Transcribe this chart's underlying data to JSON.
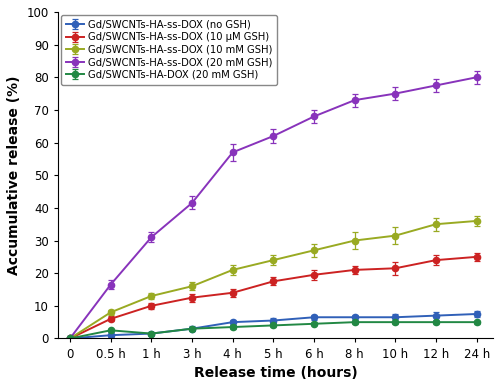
{
  "x_labels": [
    "0",
    "0.5 h",
    "1 h",
    "3 h",
    "4 h",
    "5 h",
    "6 h",
    "8 h",
    "10 h",
    "12 h",
    "24 h"
  ],
  "x_indices": [
    0,
    1,
    2,
    3,
    4,
    5,
    6,
    7,
    8,
    9,
    10
  ],
  "series": [
    {
      "label": "Gd/SWCNTs-HA-ss-DOX (no GSH)",
      "color": "#3060b8",
      "marker": "o",
      "y": [
        0,
        1.0,
        1.5,
        3.0,
        5.0,
        5.5,
        6.5,
        6.5,
        6.5,
        7.0,
        7.5
      ],
      "yerr": [
        0,
        0.5,
        0.5,
        0.8,
        0.8,
        0.8,
        0.8,
        0.8,
        1.0,
        1.2,
        0.8
      ]
    },
    {
      "label": "Gd/SWCNTs-HA-ss-DOX (10 μM GSH)",
      "color": "#cc2222",
      "marker": "o",
      "y": [
        0,
        6.0,
        10.0,
        12.5,
        14.0,
        17.5,
        19.5,
        21.0,
        21.5,
        24.0,
        25.0
      ],
      "yerr": [
        0,
        0.8,
        1.0,
        1.2,
        1.2,
        1.2,
        1.5,
        1.2,
        2.0,
        1.5,
        1.2
      ]
    },
    {
      "label": "Gd/SWCNTs-HA-ss-DOX (10 mM GSH)",
      "color": "#99aa22",
      "marker": "o",
      "y": [
        0,
        8.0,
        13.0,
        16.0,
        21.0,
        24.0,
        27.0,
        30.0,
        31.5,
        35.0,
        36.0
      ],
      "yerr": [
        0,
        0.8,
        1.0,
        1.2,
        1.5,
        1.5,
        2.0,
        2.5,
        2.5,
        2.0,
        1.5
      ]
    },
    {
      "label": "Gd/SWCNTs-HA-ss-DOX (20 mM GSH)",
      "color": "#8833bb",
      "marker": "o",
      "y": [
        0,
        16.5,
        31.0,
        41.5,
        57.0,
        62.0,
        68.0,
        73.0,
        75.0,
        77.5,
        80.0
      ],
      "yerr": [
        0,
        1.5,
        1.5,
        2.0,
        2.5,
        2.0,
        2.0,
        2.0,
        2.0,
        2.0,
        2.0
      ]
    },
    {
      "label": "Gd/SWCNTs-HA-DOX (20 mM GSH)",
      "color": "#228844",
      "marker": "o",
      "y": [
        0,
        2.5,
        1.5,
        3.0,
        3.5,
        4.0,
        4.5,
        5.0,
        5.0,
        5.0,
        5.0
      ],
      "yerr": [
        0,
        0.5,
        0.5,
        0.5,
        0.5,
        0.5,
        0.5,
        0.5,
        0.5,
        0.5,
        0.5
      ]
    }
  ],
  "xlabel": "Release time (hours)",
  "ylabel": "Accumulative release (%)",
  "ylim": [
    0,
    100
  ],
  "yticks": [
    0,
    10,
    20,
    30,
    40,
    50,
    60,
    70,
    80,
    90,
    100
  ],
  "background_color": "#ffffff",
  "legend_fontsize": 7.2,
  "axis_label_fontsize": 10,
  "tick_fontsize": 8.5
}
